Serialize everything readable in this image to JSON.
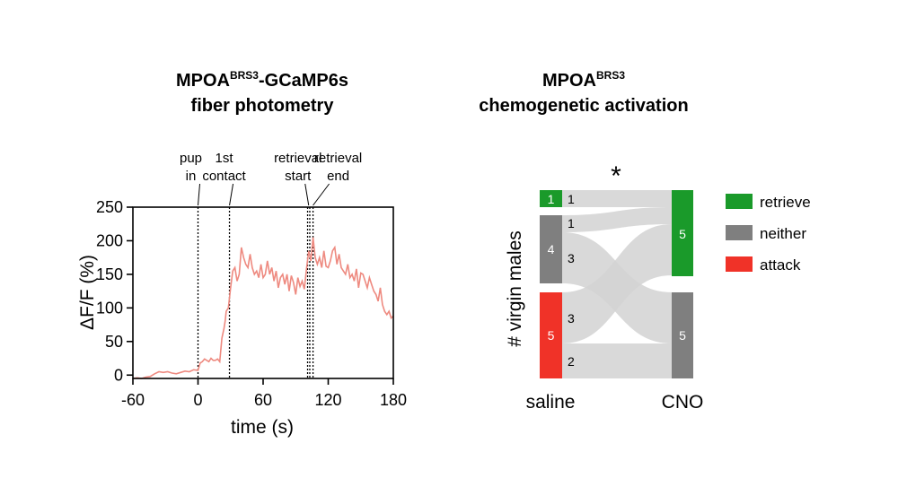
{
  "chart_data": [
    {
      "type": "line",
      "title_main": "MPOA",
      "title_sup": "BRS3",
      "title_rest": "-GCaMP6s",
      "title_line2": "fiber photometry",
      "xlabel": "time (s)",
      "ylabel": "ΔF/F (%)",
      "xlim": [
        -60,
        180
      ],
      "ylim": [
        -5,
        250
      ],
      "xticks": [
        "-60",
        "0",
        "60",
        "120",
        "180"
      ],
      "xtick_values": [
        -60,
        0,
        60,
        120,
        180
      ],
      "yticks": [
        "0",
        "50",
        "100",
        "150",
        "200",
        "250"
      ],
      "ytick_values": [
        0,
        50,
        100,
        150,
        200,
        250
      ],
      "line_color": "#ee8a80",
      "events": [
        {
          "line1": "pup",
          "line2": "in",
          "times": [
            0
          ]
        },
        {
          "line1": "1st",
          "line2": "contact",
          "times": [
            29
          ]
        },
        {
          "line1": "retrieval",
          "line2": "start",
          "times": [
            101,
            103
          ]
        },
        {
          "line1": "retrieval",
          "line2": "end",
          "times": [
            106
          ]
        }
      ],
      "series": [
        {
          "x": [
            -60,
            -56,
            -52,
            -48,
            -44,
            -40,
            -36,
            -32,
            -28,
            -24,
            -20,
            -16,
            -12,
            -8,
            -4,
            0,
            2,
            4,
            6,
            8,
            10,
            12,
            14,
            16,
            18,
            20,
            22,
            24,
            25,
            26,
            28,
            30,
            32,
            34,
            36,
            38,
            40,
            42,
            44,
            46,
            48,
            50,
            52,
            54,
            56,
            58,
            60,
            62,
            64,
            66,
            68,
            70,
            72,
            74,
            76,
            78,
            80,
            82,
            84,
            86,
            88,
            90,
            92,
            94,
            96,
            98,
            100,
            102,
            104,
            106,
            108,
            110,
            112,
            114,
            116,
            118,
            120,
            122,
            124,
            126,
            128,
            130,
            132,
            134,
            136,
            138,
            140,
            142,
            144,
            146,
            148,
            150,
            152,
            154,
            156,
            158,
            160,
            162,
            164,
            166,
            168,
            170,
            172,
            174,
            176,
            178,
            180
          ],
          "y": [
            -5,
            -4,
            -5,
            -3,
            -2,
            2,
            5,
            4,
            5,
            3,
            2,
            4,
            6,
            5,
            8,
            7,
            18,
            20,
            24,
            22,
            20,
            25,
            22,
            22,
            24,
            20,
            55,
            70,
            80,
            95,
            100,
            130,
            155,
            160,
            140,
            150,
            190,
            175,
            165,
            160,
            180,
            160,
            150,
            155,
            145,
            165,
            145,
            150,
            170,
            150,
            160,
            140,
            155,
            130,
            145,
            150,
            135,
            150,
            125,
            148,
            138,
            120,
            145,
            132,
            140,
            128,
            158,
            185,
            170,
            205,
            175,
            165,
            175,
            160,
            185,
            162,
            160,
            170,
            185,
            190,
            165,
            180,
            160,
            155,
            150,
            165,
            145,
            150,
            140,
            158,
            130,
            152,
            150,
            140,
            130,
            145,
            135,
            125,
            120,
            110,
            130,
            105,
            95,
            90,
            95,
            85,
            88
          ]
        }
      ]
    },
    {
      "type": "sankey",
      "title_main": "MPOA",
      "title_sup": "BRS3",
      "title_line2": "chemogenetic activation",
      "ylabel": "# virgin males",
      "significance": "*",
      "categories": [
        "saline",
        "CNO"
      ],
      "legend": [
        {
          "label": "retrieve",
          "color": "#1a9a2a"
        },
        {
          "label": "neither",
          "color": "#7f7f7f"
        },
        {
          "label": "attack",
          "color": "#f03228"
        }
      ],
      "saline": [
        {
          "state": "retrieve",
          "count": "1"
        },
        {
          "state": "neither",
          "count": "4"
        },
        {
          "state": "attack",
          "count": "5"
        }
      ],
      "cno": [
        {
          "state": "retrieve",
          "count": "5"
        },
        {
          "state": "neither",
          "count": "5"
        }
      ],
      "flows": [
        {
          "from": "retrieve",
          "to": "retrieve",
          "count": "1"
        },
        {
          "from": "neither",
          "to": "retrieve",
          "count": "1"
        },
        {
          "from": "neither",
          "to": "neither",
          "count": "3"
        },
        {
          "from": "attack",
          "to": "retrieve",
          "count": "3"
        },
        {
          "from": "attack",
          "to": "neither",
          "count": "2"
        }
      ]
    }
  ]
}
